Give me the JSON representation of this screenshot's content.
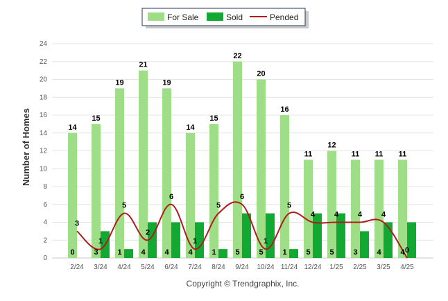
{
  "chart_data": {
    "type": "bar",
    "categories": [
      "2/24",
      "3/24",
      "4/24",
      "5/24",
      "6/24",
      "7/24",
      "8/24",
      "9/24",
      "10/24",
      "11/24",
      "12/24",
      "1/25",
      "2/25",
      "3/25",
      "4/25"
    ],
    "series": [
      {
        "name": "For Sale",
        "type": "bar",
        "color": "#9ede86",
        "values": [
          14,
          15,
          19,
          21,
          19,
          14,
          15,
          22,
          20,
          16,
          11,
          12,
          11,
          11,
          11
        ]
      },
      {
        "name": "Sold",
        "type": "bar",
        "color": "#11a932",
        "values": [
          0,
          3,
          1,
          4,
          4,
          4,
          1,
          5,
          5,
          1,
          5,
          5,
          3,
          4,
          4
        ]
      },
      {
        "name": "Pended",
        "type": "line",
        "color": "#b01c1c",
        "values": [
          3,
          1,
          5,
          2,
          6,
          1,
          5,
          6,
          1,
          5,
          4,
          4,
          4,
          4,
          0
        ]
      }
    ],
    "sold_labels": [
      "0",
      "3",
      "1",
      "4",
      "4",
      "4",
      "1",
      "5",
      "5",
      "1",
      "5",
      "5",
      "3",
      "4",
      "4"
    ],
    "pended_labels": [
      "3",
      "1",
      "5",
      "2",
      "6",
      "1",
      "5",
      "6",
      "1",
      "5",
      "4",
      "4",
      "4",
      "4",
      "0"
    ],
    "ylabel": "Number of Homes",
    "xlabel": "",
    "ylim": [
      0,
      24
    ],
    "yticks": [
      0,
      2,
      4,
      6,
      8,
      10,
      12,
      14,
      16,
      18,
      20,
      22,
      24
    ],
    "grid": true,
    "legend_position": "top-center"
  },
  "footer": {
    "copyright": "Copyright © Trendgraphix, Inc."
  }
}
